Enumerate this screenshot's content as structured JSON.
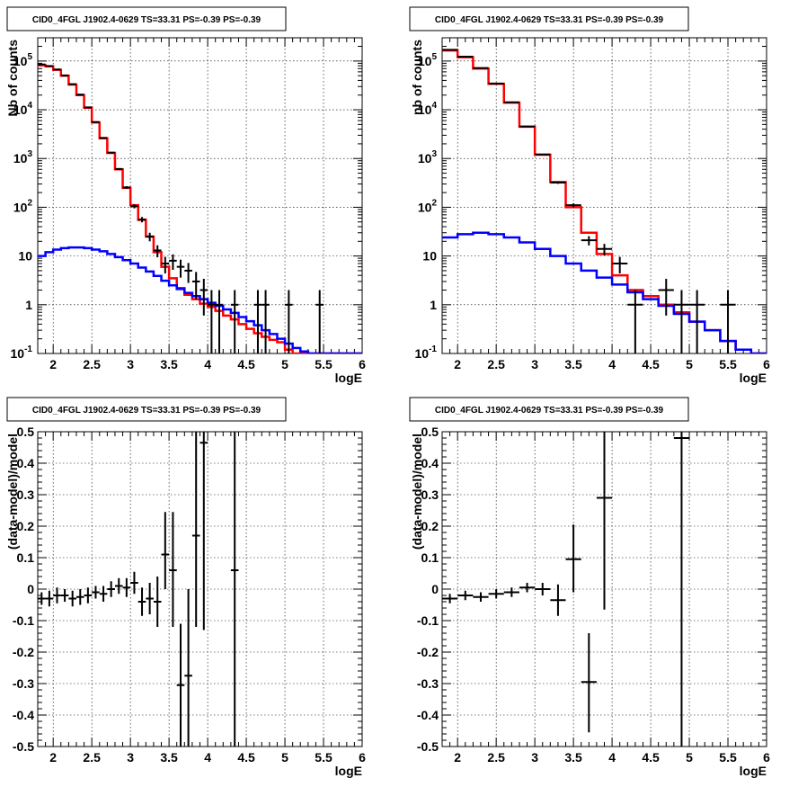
{
  "chart_data": [
    {
      "type": "histogram",
      "title": "CID0_4FGL J1902.4-0629 TS=33.31 PS=-0.39 PS=-0.39",
      "xlabel": "logE",
      "ylabel": "Nb of counts",
      "xlim": [
        1.8,
        6.0
      ],
      "ylim": [
        0.1,
        300000
      ],
      "yscale": "log",
      "grid": true,
      "xticks": [
        "2",
        "2.5",
        "3",
        "3.5",
        "4",
        "4.5",
        "5",
        "5.5",
        "6"
      ],
      "yticks": [
        "10^-1",
        "1",
        "10",
        "10^2",
        "10^3",
        "10^4",
        "10^5"
      ],
      "bin_width": 0.1,
      "series": [
        {
          "color": "#ff0000",
          "style": "step",
          "x": [
            1.8,
            1.9,
            2.0,
            2.1,
            2.2,
            2.3,
            2.4,
            2.5,
            2.6,
            2.7,
            2.8,
            2.9,
            3.0,
            3.1,
            3.2,
            3.3,
            3.4,
            3.5,
            3.6,
            3.7,
            3.8,
            3.9,
            4.0,
            4.1,
            4.2,
            4.3,
            4.4,
            4.5,
            4.6,
            4.7,
            4.8,
            4.9,
            5.0,
            5.1,
            5.2,
            5.3,
            5.4,
            5.5,
            5.6,
            5.7,
            5.8,
            5.9
          ],
          "values": [
            82000,
            78000,
            66000,
            50000,
            33000,
            20000,
            11000,
            5500,
            2600,
            1300,
            600,
            250,
            110,
            55,
            25,
            12,
            6,
            3.5,
            2.2,
            1.6,
            1.3,
            1.05,
            0.9,
            0.75,
            0.6,
            0.5,
            0.4,
            0.32,
            0.26,
            0.22,
            0.19,
            0.17,
            0.12,
            0.1,
            0.1,
            0.1,
            0.1,
            0.1,
            0.1,
            0.1,
            0.1,
            0.1
          ]
        },
        {
          "color": "#0000ff",
          "style": "step",
          "x": [
            1.8,
            1.9,
            2.0,
            2.1,
            2.2,
            2.3,
            2.4,
            2.5,
            2.6,
            2.7,
            2.8,
            2.9,
            3.0,
            3.1,
            3.2,
            3.3,
            3.4,
            3.5,
            3.6,
            3.7,
            3.8,
            3.9,
            4.0,
            4.1,
            4.2,
            4.3,
            4.4,
            4.5,
            4.6,
            4.7,
            4.8,
            4.9,
            5.0,
            5.1,
            5.2,
            5.3,
            5.4,
            5.5,
            5.6,
            5.7,
            5.8,
            5.9
          ],
          "values": [
            10,
            12,
            13.5,
            14.5,
            15,
            15,
            14.5,
            13.5,
            12.5,
            11,
            9.5,
            8.2,
            7,
            5.8,
            4.8,
            3.9,
            3.1,
            2.5,
            2.1,
            1.75,
            1.5,
            1.3,
            1.1,
            0.95,
            0.8,
            0.68,
            0.56,
            0.46,
            0.38,
            0.3,
            0.25,
            0.2,
            0.16,
            0.13,
            0.11,
            0.1,
            0.1,
            0.1,
            0.1,
            0.1,
            0.1,
            0.1
          ]
        },
        {
          "color": "#000000",
          "style": "points",
          "points": [
            {
              "x": 1.85,
              "y": 85000,
              "lo": 84700,
              "hi": 85300
            },
            {
              "x": 1.95,
              "y": 79000,
              "lo": 78700,
              "hi": 79300
            },
            {
              "x": 2.05,
              "y": 67000,
              "lo": 66700,
              "hi": 67300
            },
            {
              "x": 2.15,
              "y": 50500,
              "lo": 50200,
              "hi": 50800
            },
            {
              "x": 2.25,
              "y": 33500,
              "lo": 33300,
              "hi": 33700
            },
            {
              "x": 2.35,
              "y": 20500,
              "lo": 20350,
              "hi": 20650
            },
            {
              "x": 2.45,
              "y": 11200,
              "lo": 11100,
              "hi": 11300
            },
            {
              "x": 2.55,
              "y": 5600,
              "lo": 5520,
              "hi": 5680
            },
            {
              "x": 2.65,
              "y": 2650,
              "lo": 2600,
              "hi": 2700
            },
            {
              "x": 2.75,
              "y": 1320,
              "lo": 1280,
              "hi": 1360
            },
            {
              "x": 2.85,
              "y": 610,
              "lo": 585,
              "hi": 635
            },
            {
              "x": 2.95,
              "y": 255,
              "lo": 239,
              "hi": 271
            },
            {
              "x": 3.05,
              "y": 105,
              "lo": 95,
              "hi": 115
            },
            {
              "x": 3.15,
              "y": 56,
              "lo": 49,
              "hi": 63
            },
            {
              "x": 3.25,
              "y": 25,
              "lo": 20,
              "hi": 30
            },
            {
              "x": 3.35,
              "y": 13,
              "lo": 9.4,
              "hi": 16.6
            },
            {
              "x": 3.45,
              "y": 7,
              "lo": 4.4,
              "hi": 9.6
            },
            {
              "x": 3.55,
              "y": 8,
              "lo": 5.2,
              "hi": 10.8
            },
            {
              "x": 3.65,
              "y": 6,
              "lo": 3.6,
              "hi": 8.4
            },
            {
              "x": 3.75,
              "y": 5,
              "lo": 2.8,
              "hi": 7.2
            },
            {
              "x": 3.85,
              "y": 3,
              "lo": 1.3,
              "hi": 4.7
            },
            {
              "x": 3.95,
              "y": 2,
              "lo": 0.6,
              "hi": 3.4
            },
            {
              "x": 4.05,
              "y": 1,
              "lo": 0.1,
              "hi": 2
            },
            {
              "x": 4.15,
              "y": 1,
              "lo": 0.1,
              "hi": 2
            },
            {
              "x": 4.35,
              "y": 1,
              "lo": 0.1,
              "hi": 2
            },
            {
              "x": 4.65,
              "y": 1,
              "lo": 0.1,
              "hi": 2
            },
            {
              "x": 4.75,
              "y": 1,
              "lo": 0.1,
              "hi": 2
            },
            {
              "x": 5.05,
              "y": 1,
              "lo": 0.1,
              "hi": 2
            },
            {
              "x": 5.45,
              "y": 1,
              "lo": 0.1,
              "hi": 2
            }
          ]
        }
      ]
    },
    {
      "type": "histogram",
      "title": "CID0_4FGL J1902.4-0629 TS=33.31 PS=-0.39 PS=-0.39",
      "xlabel": "logE",
      "ylabel": "nb of counts",
      "xlim": [
        1.8,
        6.0
      ],
      "ylim": [
        0.1,
        300000
      ],
      "yscale": "log",
      "grid": true,
      "xticks": [
        "2",
        "2.5",
        "3",
        "3.5",
        "4",
        "4.5",
        "5",
        "5.5",
        "6"
      ],
      "yticks": [
        "10^-1",
        "1",
        "10",
        "10^2",
        "10^3",
        "10^4",
        "10^5"
      ],
      "bin_width": 0.2,
      "series": [
        {
          "color": "#ff0000",
          "style": "step",
          "x": [
            1.8,
            2.0,
            2.2,
            2.4,
            2.6,
            2.8,
            3.0,
            3.2,
            3.4,
            3.6,
            3.8,
            4.0,
            4.2,
            4.4,
            4.6,
            4.8,
            5.0,
            5.2,
            5.4,
            5.6,
            5.8
          ],
          "values": [
            165000,
            120000,
            70000,
            34000,
            14000,
            4500,
            1200,
            330,
            100,
            30,
            11,
            4,
            2,
            1.5,
            1,
            0.7,
            0.45,
            0.3,
            0.18,
            0.12,
            0.1
          ]
        },
        {
          "color": "#0000ff",
          "style": "step",
          "x": [
            1.8,
            2.0,
            2.2,
            2.4,
            2.6,
            2.8,
            3.0,
            3.2,
            3.4,
            3.6,
            3.8,
            4.0,
            4.2,
            4.4,
            4.6,
            4.8,
            5.0,
            5.2,
            5.4,
            5.6,
            5.8
          ],
          "values": [
            24,
            28,
            30,
            28,
            24,
            19,
            14,
            10,
            7,
            5,
            3.6,
            2.6,
            1.8,
            1.3,
            0.95,
            0.65,
            0.45,
            0.3,
            0.18,
            0.12,
            0.1
          ]
        },
        {
          "color": "#000000",
          "style": "points",
          "points": [
            {
              "x": 1.9,
              "y": 170000,
              "lo": 169600,
              "hi": 170400
            },
            {
              "x": 2.1,
              "y": 123000,
              "lo": 122600,
              "hi": 123400
            },
            {
              "x": 2.3,
              "y": 72000,
              "lo": 71700,
              "hi": 72300
            },
            {
              "x": 2.5,
              "y": 34500,
              "lo": 34300,
              "hi": 34700
            },
            {
              "x": 2.7,
              "y": 14200,
              "lo": 14080,
              "hi": 14320
            },
            {
              "x": 2.9,
              "y": 4550,
              "lo": 4480,
              "hi": 4620
            },
            {
              "x": 3.1,
              "y": 1210,
              "lo": 1175,
              "hi": 1245
            },
            {
              "x": 3.3,
              "y": 320,
              "lo": 302,
              "hi": 338
            },
            {
              "x": 3.5,
              "y": 110,
              "lo": 100,
              "hi": 120
            },
            {
              "x": 3.7,
              "y": 21,
              "lo": 16.5,
              "hi": 25.5
            },
            {
              "x": 3.9,
              "y": 14,
              "lo": 10.3,
              "hi": 17.7
            },
            {
              "x": 4.1,
              "y": 7,
              "lo": 4.4,
              "hi": 9.6
            },
            {
              "x": 4.3,
              "y": 1,
              "lo": 0.1,
              "hi": 2
            },
            {
              "x": 4.7,
              "y": 2,
              "lo": 0.6,
              "hi": 3.4
            },
            {
              "x": 4.9,
              "y": 1,
              "lo": 0.1,
              "hi": 2
            },
            {
              "x": 5.1,
              "y": 1,
              "lo": 0.1,
              "hi": 2
            },
            {
              "x": 5.5,
              "y": 1,
              "lo": 0.1,
              "hi": 2
            }
          ]
        }
      ]
    },
    {
      "type": "scatter",
      "title": "CID0_4FGL J1902.4-0629 TS=33.31 PS=-0.39 PS=-0.39",
      "xlabel": "logE",
      "ylabel": "(data-model)/model",
      "xlim": [
        1.8,
        6.0
      ],
      "ylim": [
        -0.5,
        0.5
      ],
      "grid": true,
      "xticks": [
        "2",
        "2.5",
        "3",
        "3.5",
        "4",
        "4.5",
        "5",
        "5.5",
        "6"
      ],
      "yticks": [
        "-0.5",
        "-0.4",
        "-0.3",
        "-0.2",
        "-0.1",
        "0",
        "0.1",
        "0.2",
        "0.3",
        "0.4",
        "0.5"
      ],
      "bin_width": 0.1,
      "points": [
        {
          "x": 1.85,
          "y": -0.03,
          "lo": -0.05,
          "hi": -0.01
        },
        {
          "x": 1.95,
          "y": -0.03,
          "lo": -0.055,
          "hi": -0.005
        },
        {
          "x": 2.05,
          "y": -0.02,
          "lo": -0.045,
          "hi": 0.005
        },
        {
          "x": 2.15,
          "y": -0.02,
          "lo": -0.04,
          "hi": 0.0
        },
        {
          "x": 2.25,
          "y": -0.03,
          "lo": -0.055,
          "hi": -0.005
        },
        {
          "x": 2.35,
          "y": -0.025,
          "lo": -0.05,
          "hi": 0.0
        },
        {
          "x": 2.45,
          "y": -0.02,
          "lo": -0.045,
          "hi": 0.005
        },
        {
          "x": 2.55,
          "y": -0.01,
          "lo": -0.03,
          "hi": 0.01
        },
        {
          "x": 2.65,
          "y": -0.015,
          "lo": -0.04,
          "hi": 0.01
        },
        {
          "x": 2.75,
          "y": 0.0,
          "lo": -0.025,
          "hi": 0.025
        },
        {
          "x": 2.85,
          "y": 0.01,
          "lo": -0.015,
          "hi": 0.035
        },
        {
          "x": 2.95,
          "y": 0.005,
          "lo": -0.025,
          "hi": 0.035
        },
        {
          "x": 3.05,
          "y": 0.02,
          "lo": -0.015,
          "hi": 0.055
        },
        {
          "x": 3.15,
          "y": -0.04,
          "lo": -0.085,
          "hi": 0.005
        },
        {
          "x": 3.25,
          "y": -0.03,
          "lo": -0.08,
          "hi": 0.02
        },
        {
          "x": 3.35,
          "y": -0.04,
          "lo": -0.12,
          "hi": 0.04
        },
        {
          "x": 3.45,
          "y": 0.11,
          "lo": 0.0,
          "hi": 0.245
        },
        {
          "x": 3.55,
          "y": 0.06,
          "lo": -0.12,
          "hi": 0.245
        },
        {
          "x": 3.65,
          "y": -0.305,
          "lo": -0.5,
          "hi": -0.11
        },
        {
          "x": 3.75,
          "y": -0.275,
          "lo": -0.5,
          "hi": 0.0
        },
        {
          "x": 3.85,
          "y": 0.17,
          "lo": -0.12,
          "hi": 0.5
        },
        {
          "x": 3.95,
          "y": 0.465,
          "lo": -0.13,
          "hi": 0.5
        },
        {
          "x": 4.35,
          "y": 0.06,
          "lo": -0.5,
          "hi": 0.5
        }
      ]
    },
    {
      "type": "scatter",
      "title": "CID0_4FGL J1902.4-0629 TS=33.31 PS=-0.39 PS=-0.39",
      "xlabel": "logE",
      "ylabel": "(data-model)/model",
      "xlim": [
        1.8,
        6.0
      ],
      "ylim": [
        -0.5,
        0.5
      ],
      "grid": true,
      "xticks": [
        "2",
        "2.5",
        "3",
        "3.5",
        "4",
        "4.5",
        "5",
        "5.5",
        "6"
      ],
      "yticks": [
        "-0.5",
        "-0.4",
        "-0.3",
        "-0.2",
        "-0.1",
        "0",
        "0.1",
        "0.2",
        "0.3",
        "0.4",
        "0.5"
      ],
      "bin_width": 0.2,
      "points": [
        {
          "x": 1.9,
          "y": -0.03,
          "lo": -0.045,
          "hi": -0.015
        },
        {
          "x": 2.1,
          "y": -0.02,
          "lo": -0.035,
          "hi": -0.005
        },
        {
          "x": 2.3,
          "y": -0.025,
          "lo": -0.04,
          "hi": -0.01
        },
        {
          "x": 2.5,
          "y": -0.015,
          "lo": -0.03,
          "hi": 0.0
        },
        {
          "x": 2.7,
          "y": -0.01,
          "lo": -0.025,
          "hi": 0.005
        },
        {
          "x": 2.9,
          "y": 0.005,
          "lo": -0.01,
          "hi": 0.02
        },
        {
          "x": 3.1,
          "y": 0.0,
          "lo": -0.02,
          "hi": 0.02
        },
        {
          "x": 3.3,
          "y": -0.035,
          "lo": -0.085,
          "hi": 0.015
        },
        {
          "x": 3.5,
          "y": 0.095,
          "lo": -0.01,
          "hi": 0.205
        },
        {
          "x": 3.7,
          "y": -0.295,
          "lo": -0.455,
          "hi": -0.14
        },
        {
          "x": 3.9,
          "y": 0.29,
          "lo": -0.065,
          "hi": 0.5
        },
        {
          "x": 4.9,
          "y": 0.48,
          "lo": -0.5,
          "hi": 0.5
        }
      ]
    }
  ]
}
